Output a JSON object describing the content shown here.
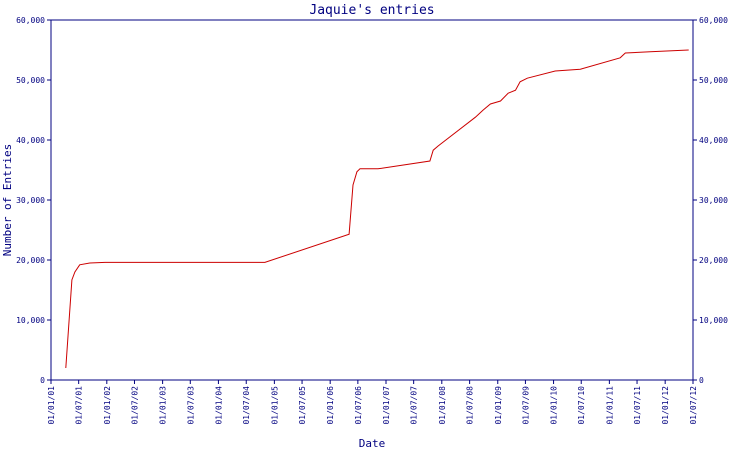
{
  "chart_data": {
    "type": "line",
    "title": "Jaquie's entries",
    "xlabel": "Date",
    "ylabel": "Number of Entries",
    "xlim": [
      "01/01/01",
      "01/07/12"
    ],
    "xticks": [
      "01/01/01",
      "01/07/01",
      "01/01/02",
      "01/07/02",
      "01/01/03",
      "01/07/03",
      "01/01/04",
      "01/07/04",
      "01/01/05",
      "01/07/05",
      "01/01/06",
      "01/07/06",
      "01/01/07",
      "01/07/07",
      "01/01/08",
      "01/07/08",
      "01/01/09",
      "01/07/09",
      "01/01/10",
      "01/07/10",
      "01/01/11",
      "01/07/11",
      "01/01/12",
      "01/07/12"
    ],
    "ylim": [
      0,
      60000
    ],
    "yticks": [
      0,
      {
        "value": 10000,
        "label": "10,000"
      },
      {
        "value": 20000,
        "label": "20,000"
      },
      {
        "value": 30000,
        "label": "30,000"
      },
      {
        "value": 40000,
        "label": "40,000"
      },
      {
        "value": 50000,
        "label": "50,000"
      },
      {
        "value": 60000,
        "label": "60,000"
      }
    ],
    "series": [
      {
        "color": "#cc0000",
        "x": [
          "08/04/01",
          "18/05/01",
          "06/06/01",
          "08/07/01",
          "12/09/01",
          "20/12/01",
          "31/10/04",
          "05/05/06",
          "30/05/06",
          "25/06/06",
          "15/07/06",
          "10/11/06",
          "15/10/07",
          "06/11/07",
          "08/12/07",
          "08/08/08",
          "28/09/08",
          "14/11/08",
          "19/01/09",
          "10/03/09",
          "27/04/09",
          "27/05/09",
          "13/07/09",
          "12/01/10",
          "25/06/10",
          "13/03/11",
          "15/04/11",
          "25/09/11",
          "03/06/12"
        ],
        "values": [
          2000,
          16700,
          18000,
          19200,
          19500,
          19600,
          19600,
          24300,
          32500,
          34700,
          35200,
          35200,
          36500,
          38300,
          39000,
          43800,
          45000,
          46000,
          46500,
          47800,
          48300,
          49700,
          50300,
          51500,
          51800,
          53700,
          54500,
          54700,
          55000
        ]
      }
    ]
  }
}
